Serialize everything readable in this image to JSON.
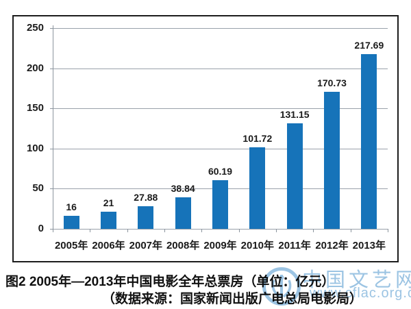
{
  "figure": {
    "caption_line1": "图2 2005年—2013年中国电影全年总票房（单位：亿元）",
    "caption_line2": "（数据来源：国家新闻出版广电总局电影局）"
  },
  "watermark": {
    "site_name": "中国文艺网",
    "site_url": "www.cflac.org.cn",
    "color": "#9cc4e3",
    "logo_icon": "cflac-logo-icon"
  },
  "chart_data": {
    "type": "bar",
    "title": "",
    "xlabel": "",
    "ylabel": "",
    "categories": [
      "2005年",
      "2006年",
      "2007年",
      "2008年",
      "2009年",
      "2010年",
      "2011年",
      "2012年",
      "2013年"
    ],
    "values": [
      16,
      21,
      27.88,
      38.84,
      60.19,
      101.72,
      131.15,
      170.73,
      217.69
    ],
    "value_labels": [
      "16",
      "21",
      "27.88",
      "38.84",
      "60.19",
      "101.72",
      "131.15",
      "170.73",
      "217.69"
    ],
    "ylim": [
      0,
      250
    ],
    "yticks": [
      0,
      50,
      100,
      150,
      200,
      250
    ],
    "grid": true,
    "legend": "none",
    "bar_color": "#1673b9",
    "gridline_color": "#99a1aa",
    "axis_color": "#8b949d",
    "text_color": "#1a1a1a"
  }
}
